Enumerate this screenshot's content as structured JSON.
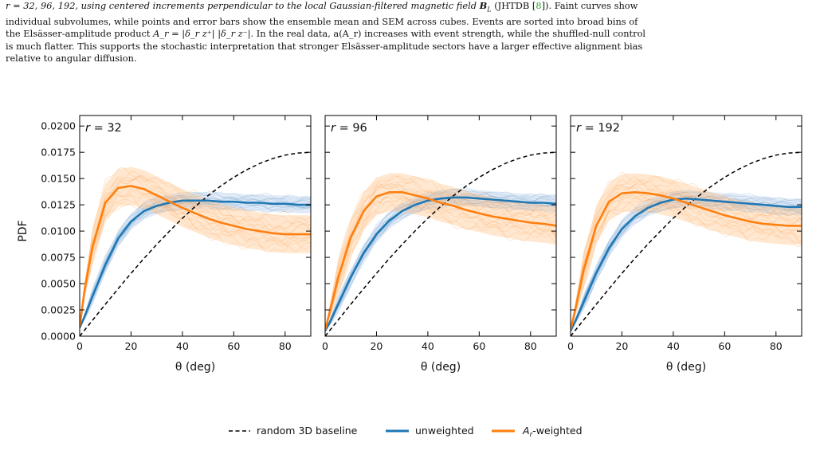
{
  "caption": {
    "line1": "r = 32, 96, 192, using centered increments perpendicular to the local Gaussian-filtered magnetic field",
    "field_symbol": "B",
    "field_sub": "L",
    "line1_tail": "(JHTDB [",
    "ref": "8",
    "line1_end": "]). Faint curves show",
    "line2": "individual subvolumes, while points and error bars show the ensemble mean and SEM across cubes. Events are sorted into broad bins of",
    "line3_pre": "the Elsässer-amplitude product",
    "line3_math": "A_r = |δ_r z⁺| |δ_r z⁻|",
    "line3_post": ". In the real data, a(A_r) increases with event strength, while the shuffled-null control",
    "line4": "is much flatter. This supports the stochastic interpretation that stronger Elsässer-amplitude sectors have a larger effective alignment bias",
    "line5": "relative to angular diffusion."
  },
  "colors": {
    "unweighted": "#1f77b4",
    "weighted": "#ff7f0e",
    "baseline": "#000000",
    "shade_unweighted": "#aec7e8",
    "shade_weighted": "#ffbb78"
  },
  "legend": {
    "baseline_label": "random 3D baseline",
    "unweighted_label": "unweighted",
    "weighted_label_main": "A",
    "weighted_label_sub": "r",
    "weighted_label_tail": "-weighted"
  },
  "chart_data": [
    {
      "type": "line",
      "panel_label": "r = 32",
      "xlabel": "θ (deg)",
      "ylabel": "PDF",
      "xlim": [
        0,
        90
      ],
      "ylim": [
        0,
        0.021
      ],
      "xticks": [
        "0",
        "20",
        "40",
        "60",
        "80"
      ],
      "yticks": [
        "0.0000",
        "0.0025",
        "0.0050",
        "0.0075",
        "0.0100",
        "0.0125",
        "0.0150",
        "0.0175",
        "0.0200"
      ],
      "series": [
        {
          "name": "random 3D baseline",
          "x": [
            0,
            5,
            10,
            15,
            20,
            25,
            30,
            35,
            40,
            45,
            50,
            55,
            60,
            65,
            70,
            75,
            80,
            85,
            90
          ],
          "y": [
            0,
            0.00152,
            0.00303,
            0.00452,
            0.00598,
            0.00739,
            0.00873,
            0.01001,
            0.01122,
            0.01234,
            0.01337,
            0.0143,
            0.01512,
            0.01583,
            0.01642,
            0.01689,
            0.01723,
            0.01743,
            0.0175
          ]
        },
        {
          "name": "unweighted",
          "x": [
            0,
            2,
            5,
            10,
            15,
            20,
            25,
            30,
            35,
            40,
            45,
            50,
            55,
            60,
            65,
            70,
            75,
            80,
            85,
            90
          ],
          "y": [
            0.0008,
            0.0019,
            0.0038,
            0.0068,
            0.0093,
            0.0109,
            0.0119,
            0.0124,
            0.0127,
            0.0129,
            0.0129,
            0.0129,
            0.0128,
            0.0128,
            0.0127,
            0.0127,
            0.0126,
            0.0126,
            0.0125,
            0.0125
          ],
          "band": 0.0008
        },
        {
          "name": "A_r-weighted",
          "x": [
            0,
            2,
            5,
            10,
            15,
            20,
            25,
            30,
            35,
            40,
            45,
            50,
            55,
            60,
            65,
            70,
            75,
            80,
            85,
            90
          ],
          "y": [
            0.0009,
            0.0045,
            0.0085,
            0.0127,
            0.0141,
            0.0143,
            0.014,
            0.0134,
            0.0128,
            0.0122,
            0.0117,
            0.0112,
            0.0108,
            0.0105,
            0.0102,
            0.01,
            0.0098,
            0.0097,
            0.0097,
            0.0097
          ],
          "band": 0.0018
        }
      ]
    },
    {
      "type": "line",
      "panel_label": "r = 96",
      "xlabel": "θ (deg)",
      "ylabel": "",
      "xlim": [
        0,
        90
      ],
      "ylim": [
        0,
        0.021
      ],
      "xticks": [
        "0",
        "20",
        "40",
        "60",
        "80"
      ],
      "yticks": [],
      "series": [
        {
          "name": "random 3D baseline",
          "x": [
            0,
            5,
            10,
            15,
            20,
            25,
            30,
            35,
            40,
            45,
            50,
            55,
            60,
            65,
            70,
            75,
            80,
            85,
            90
          ],
          "y": [
            0,
            0.00152,
            0.00303,
            0.00452,
            0.00598,
            0.00739,
            0.00873,
            0.01001,
            0.01122,
            0.01234,
            0.01337,
            0.0143,
            0.01512,
            0.01583,
            0.01642,
            0.01689,
            0.01723,
            0.01743,
            0.0175
          ]
        },
        {
          "name": "unweighted",
          "x": [
            0,
            2,
            5,
            10,
            15,
            20,
            25,
            30,
            35,
            40,
            45,
            50,
            55,
            60,
            65,
            70,
            75,
            80,
            85,
            90
          ],
          "y": [
            0.0005,
            0.0014,
            0.003,
            0.0056,
            0.0079,
            0.0097,
            0.011,
            0.0119,
            0.0125,
            0.0129,
            0.0131,
            0.0132,
            0.0132,
            0.0131,
            0.013,
            0.0129,
            0.0128,
            0.0127,
            0.0127,
            0.0126
          ],
          "band": 0.0008
        },
        {
          "name": "A_r-weighted",
          "x": [
            0,
            2,
            5,
            10,
            15,
            20,
            25,
            30,
            35,
            40,
            45,
            50,
            55,
            60,
            65,
            70,
            75,
            80,
            85,
            90
          ],
          "y": [
            0.0006,
            0.0025,
            0.0055,
            0.0094,
            0.0119,
            0.0133,
            0.0137,
            0.0137,
            0.0134,
            0.0131,
            0.0127,
            0.0124,
            0.012,
            0.0117,
            0.0114,
            0.0112,
            0.011,
            0.0108,
            0.0107,
            0.0105
          ],
          "band": 0.0018
        }
      ]
    },
    {
      "type": "line",
      "panel_label": "r = 192",
      "xlabel": "θ (deg)",
      "ylabel": "",
      "xlim": [
        0,
        90
      ],
      "ylim": [
        0,
        0.021
      ],
      "xticks": [
        "0",
        "20",
        "40",
        "60",
        "80"
      ],
      "yticks": [],
      "series": [
        {
          "name": "random 3D baseline",
          "x": [
            0,
            5,
            10,
            15,
            20,
            25,
            30,
            35,
            40,
            45,
            50,
            55,
            60,
            65,
            70,
            75,
            80,
            85,
            90
          ],
          "y": [
            0,
            0.00152,
            0.00303,
            0.00452,
            0.00598,
            0.00739,
            0.00873,
            0.01001,
            0.01122,
            0.01234,
            0.01337,
            0.0143,
            0.01512,
            0.01583,
            0.01642,
            0.01689,
            0.01723,
            0.01743,
            0.0175
          ]
        },
        {
          "name": "unweighted",
          "x": [
            0,
            2,
            5,
            10,
            15,
            20,
            25,
            30,
            35,
            40,
            45,
            50,
            55,
            60,
            65,
            70,
            75,
            80,
            85,
            90
          ],
          "y": [
            0.0005,
            0.0015,
            0.0032,
            0.006,
            0.0084,
            0.0102,
            0.0114,
            0.0122,
            0.0127,
            0.013,
            0.0131,
            0.013,
            0.0129,
            0.0128,
            0.0127,
            0.0126,
            0.0125,
            0.0124,
            0.0123,
            0.0123
          ],
          "band": 0.0008
        },
        {
          "name": "A_r-weighted",
          "x": [
            0,
            2,
            5,
            10,
            15,
            20,
            25,
            30,
            35,
            40,
            45,
            50,
            55,
            60,
            65,
            70,
            75,
            80,
            85,
            90
          ],
          "y": [
            0.0006,
            0.0027,
            0.0062,
            0.0105,
            0.0128,
            0.0136,
            0.0137,
            0.0136,
            0.0134,
            0.0131,
            0.0127,
            0.0123,
            0.0119,
            0.0115,
            0.0112,
            0.0109,
            0.0107,
            0.0106,
            0.0105,
            0.0105
          ],
          "band": 0.0018
        }
      ]
    }
  ]
}
